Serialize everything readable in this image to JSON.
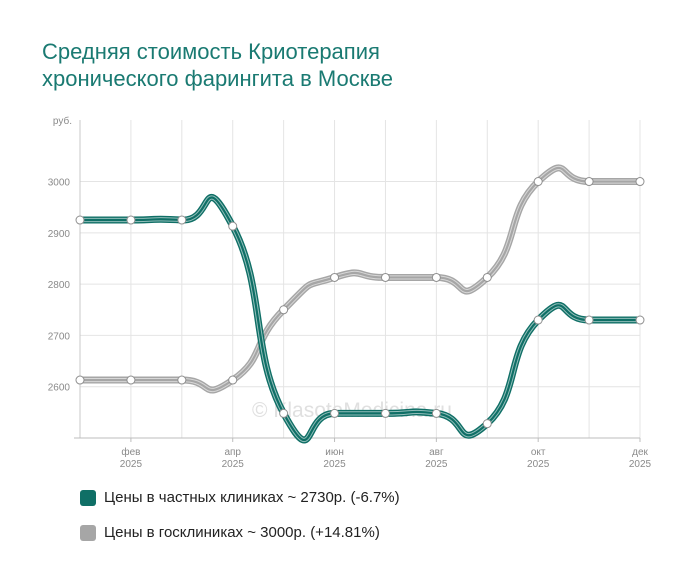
{
  "chart_data": {
    "type": "line",
    "title_lines": [
      "Средняя стоимость Криотерапия",
      "хронического фарингита в Москве"
    ],
    "y_unit": "руб.",
    "ylim": [
      2500,
      3120
    ],
    "y_ticks": [
      2600,
      2700,
      2800,
      2900,
      3000
    ],
    "x_labels": [
      {
        "index": 1,
        "month": "фев",
        "year": "2025"
      },
      {
        "index": 3,
        "month": "апр",
        "year": "2025"
      },
      {
        "index": 5,
        "month": "июн",
        "year": "2025"
      },
      {
        "index": 7,
        "month": "авг",
        "year": "2025"
      },
      {
        "index": 9,
        "month": "окт",
        "year": "2025"
      },
      {
        "index": 11,
        "month": "дек",
        "year": "2025"
      }
    ],
    "series": [
      {
        "name": "private",
        "color": "#0f6f66",
        "values": [
          2925,
          2925,
          2925,
          2913,
          2548,
          2548,
          2548,
          2548,
          2528,
          2730,
          2730,
          2730
        ]
      },
      {
        "name": "state",
        "color": "#a6a6a6",
        "values": [
          2613,
          2613,
          2613,
          2613,
          2750,
          2813,
          2813,
          2813,
          2813,
          3000,
          3000,
          3000
        ]
      }
    ],
    "watermark": "© KlasotaMedicina.ru"
  },
  "legend": {
    "private_label": "Цены в частных клиниках ~ 2730р. (-6.7%)",
    "state_label": "Цены в госклиниках ~ 3000р. (+14.81%)",
    "private_color": "#0f6f66",
    "state_color": "#a6a6a6"
  }
}
